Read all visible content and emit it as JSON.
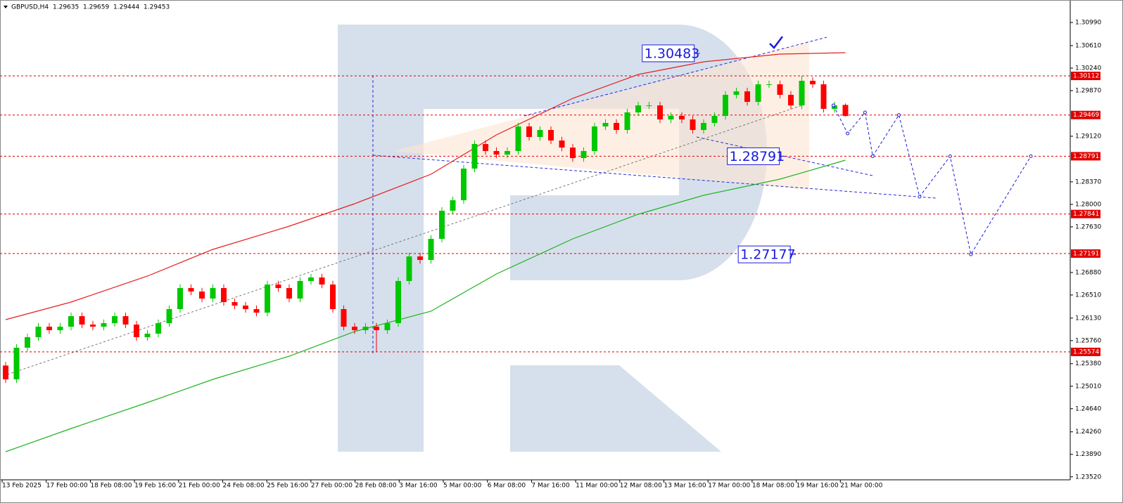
{
  "chart_data": {
    "type": "candlestick",
    "title": "GBPUSD,H4",
    "ohlc": [
      1.29635,
      1.29659,
      1.29444,
      1.29453
    ],
    "ylim": [
      1.23471,
      1.3136
    ],
    "yticks": [
      {
        "value": 1.3099,
        "label": "1.30990"
      },
      {
        "value": 1.3061,
        "label": "1.30610"
      },
      {
        "value": 1.3024,
        "label": "1.30240"
      },
      {
        "value": 1.2987,
        "label": "1.29870"
      },
      {
        "value": 1.2912,
        "label": "1.29120"
      },
      {
        "value": 1.2837,
        "label": "1.28370"
      },
      {
        "value": 1.28,
        "label": "1.28000"
      },
      {
        "value": 1.2763,
        "label": "1.27630"
      },
      {
        "value": 1.2688,
        "label": "1.26880"
      },
      {
        "value": 1.2651,
        "label": "1.26510"
      },
      {
        "value": 1.2613,
        "label": "1.26130"
      },
      {
        "value": 1.2576,
        "label": "1.25760"
      },
      {
        "value": 1.2538,
        "label": "1.25380"
      },
      {
        "value": 1.2501,
        "label": "1.25010"
      },
      {
        "value": 1.2464,
        "label": "1.24640"
      },
      {
        "value": 1.2426,
        "label": "1.24260"
      },
      {
        "value": 1.2389,
        "label": "1.23890"
      },
      {
        "value": 1.2352,
        "label": "1.23520"
      }
    ],
    "x_labels": [
      "13 Feb 2025",
      "17 Feb 00:00",
      "18 Feb 08:00",
      "19 Feb 16:00",
      "21 Feb 00:00",
      "24 Feb 08:00",
      "25 Feb 16:00",
      "27 Feb 00:00",
      "28 Feb 08:00",
      "3 Mar 16:00",
      "5 Mar 00:00",
      "6 Mar 08:00",
      "7 Mar 16:00",
      "11 Mar 00:00",
      "12 Mar 08:00",
      "13 Mar 16:00",
      "17 Mar 00:00",
      "18 Mar 08:00",
      "19 Mar 16:00",
      "21 Mar 00:00"
    ],
    "up_color": "#00c800",
    "down_color": "#ff0000",
    "candles": [
      [
        1.2535,
        1.2541,
        1.25063,
        1.25123
      ],
      [
        1.25123,
        1.25703,
        1.25063,
        1.25643
      ],
      [
        1.25643,
        1.25876,
        1.25583,
        1.25816
      ],
      [
        1.25816,
        1.26049,
        1.25756,
        1.25989
      ],
      [
        1.25989,
        1.26049,
        1.25871,
        1.25931
      ],
      [
        1.25931,
        1.26049,
        1.25871,
        1.25989
      ],
      [
        1.25989,
        1.26222,
        1.25929,
        1.26162
      ],
      [
        1.26162,
        1.26222,
        1.25964,
        1.26024
      ],
      [
        1.26024,
        1.26084,
        1.25929,
        1.25989
      ],
      [
        1.25989,
        1.26107,
        1.25929,
        1.26047
      ],
      [
        1.26047,
        1.26222,
        1.25987,
        1.26162
      ],
      [
        1.26162,
        1.26222,
        1.25964,
        1.26024
      ],
      [
        1.26024,
        1.26084,
        1.25756,
        1.25816
      ],
      [
        1.25816,
        1.25934,
        1.25756,
        1.25874
      ],
      [
        1.25874,
        1.26107,
        1.25814,
        1.26047
      ],
      [
        1.26047,
        1.26338,
        1.25987,
        1.26278
      ],
      [
        1.26278,
        1.26684,
        1.26218,
        1.26624
      ],
      [
        1.26624,
        1.26684,
        1.26507,
        1.26567
      ],
      [
        1.26567,
        1.26627,
        1.26391,
        1.26451
      ],
      [
        1.26451,
        1.26684,
        1.26391,
        1.26624
      ],
      [
        1.26624,
        1.26684,
        1.26333,
        1.26393
      ],
      [
        1.26393,
        1.26453,
        1.26276,
        1.26336
      ],
      [
        1.26336,
        1.26396,
        1.26218,
        1.26278
      ],
      [
        1.26278,
        1.26338,
        1.2616,
        1.2622
      ],
      [
        1.2622,
        1.26742,
        1.2616,
        1.26682
      ],
      [
        1.26682,
        1.26742,
        1.26564,
        1.26624
      ],
      [
        1.26624,
        1.26684,
        1.26391,
        1.26451
      ],
      [
        1.26451,
        1.268,
        1.26391,
        1.2674
      ],
      [
        1.2674,
        1.26858,
        1.2668,
        1.26798
      ],
      [
        1.26798,
        1.26858,
        1.26622,
        1.26682
      ],
      [
        1.26682,
        1.26742,
        1.26218,
        1.26278
      ],
      [
        1.26278,
        1.26338,
        1.25929,
        1.25989
      ],
      [
        1.25989,
        1.26049,
        1.25871,
        1.25931
      ],
      [
        1.25931,
        1.26049,
        1.25871,
        1.25989
      ],
      [
        1.25989,
        1.26049,
        1.25574,
        1.25931
      ],
      [
        1.25931,
        1.26107,
        1.25871,
        1.26047
      ],
      [
        1.26047,
        1.268,
        1.25987,
        1.2674
      ],
      [
        1.2674,
        1.27204,
        1.2668,
        1.27144
      ],
      [
        1.27144,
        1.27204,
        1.27026,
        1.27086
      ],
      [
        1.27086,
        1.27493,
        1.27026,
        1.27433
      ],
      [
        1.27433,
        1.27955,
        1.27373,
        1.27895
      ],
      [
        1.27895,
        1.28128,
        1.27835,
        1.28068
      ],
      [
        1.28068,
        1.28648,
        1.28008,
        1.28588
      ],
      [
        1.28588,
        1.29052,
        1.28528,
        1.28992
      ],
      [
        1.28992,
        1.29052,
        1.28817,
        1.28877
      ],
      [
        1.28877,
        1.28937,
        1.28759,
        1.28819
      ],
      [
        1.28819,
        1.28937,
        1.28759,
        1.28877
      ],
      [
        1.28877,
        1.29341,
        1.28817,
        1.29281
      ],
      [
        1.29281,
        1.29341,
        1.29048,
        1.29108
      ],
      [
        1.29108,
        1.29283,
        1.29048,
        1.29223
      ],
      [
        1.29223,
        1.29283,
        1.2899,
        1.2905
      ],
      [
        1.2905,
        1.2911,
        1.28874,
        1.28934
      ],
      [
        1.28934,
        1.28994,
        1.28701,
        1.28761
      ],
      [
        1.28761,
        1.28937,
        1.28701,
        1.28877
      ],
      [
        1.28877,
        1.29341,
        1.28817,
        1.29281
      ],
      [
        1.29281,
        1.29399,
        1.29221,
        1.29339
      ],
      [
        1.29339,
        1.29399,
        1.29163,
        1.29223
      ],
      [
        1.29223,
        1.29572,
        1.29163,
        1.29512
      ],
      [
        1.29512,
        1.29687,
        1.29452,
        1.29627
      ],
      [
        1.29627,
        1.29687,
        1.29567,
        1.29627
      ],
      [
        1.29627,
        1.29687,
        1.29336,
        1.29396
      ],
      [
        1.29396,
        1.29514,
        1.29336,
        1.29454
      ],
      [
        1.29454,
        1.29514,
        1.29336,
        1.29396
      ],
      [
        1.29396,
        1.29456,
        1.29163,
        1.29223
      ],
      [
        1.29223,
        1.29399,
        1.29163,
        1.29339
      ],
      [
        1.29339,
        1.29514,
        1.29279,
        1.29454
      ],
      [
        1.29454,
        1.29861,
        1.29394,
        1.29801
      ],
      [
        1.29801,
        1.29918,
        1.29741,
        1.29858
      ],
      [
        1.29858,
        1.29918,
        1.29625,
        1.29685
      ],
      [
        1.29685,
        1.30034,
        1.29625,
        1.29974
      ],
      [
        1.29974,
        1.30034,
        1.29914,
        1.29974
      ],
      [
        1.29974,
        1.30034,
        1.29741,
        1.29801
      ],
      [
        1.29801,
        1.29861,
        1.29567,
        1.29627
      ],
      [
        1.29627,
        1.30112,
        1.29567,
        1.30032
      ],
      [
        1.30032,
        1.30092,
        1.29914,
        1.29974
      ],
      [
        1.29974,
        1.30034,
        1.2951,
        1.2957
      ],
      [
        1.2957,
        1.29687,
        1.2951,
        1.29627
      ],
      [
        1.29635,
        1.29659,
        1.29444,
        1.29453
      ]
    ],
    "series": [
      {
        "color": "#e61e1e",
        "x": [
          0,
          6,
          13,
          19,
          26,
          32,
          39,
          45,
          52,
          58,
          64,
          71,
          77
        ],
        "values": [
          1.26105,
          1.26393,
          1.26821,
          1.2726,
          1.27641,
          1.2801,
          1.28496,
          1.29142,
          1.29743,
          1.30136,
          1.30344,
          1.30471,
          1.30494
        ]
      },
      {
        "color": "#1eb41e",
        "x": [
          0,
          6,
          13,
          19,
          26,
          32,
          39,
          45,
          52,
          58,
          64,
          71,
          77
        ],
        "values": [
          1.23933,
          1.24314,
          1.24742,
          1.25123,
          1.25504,
          1.25908,
          1.26243,
          1.26855,
          1.27433,
          1.27837,
          1.28149,
          1.28415,
          1.28727
        ]
      }
    ],
    "forecast": {
      "color": "#1a1adc",
      "x": [
        75.9,
        77.2,
        78.8,
        79.5,
        81.9,
        83.8,
        86.6,
        88.5,
        94
      ],
      "values": [
        1.29628,
        1.29165,
        1.29512,
        1.28791,
        1.29469,
        1.28126,
        1.28791,
        1.27177,
        1.28791
      ]
    },
    "levels": [
      1.30112,
      1.29469,
      1.28791,
      1.27841,
      1.27191,
      1.25574
    ],
    "annotations": [
      {
        "value": 1.30483,
        "at": 58.5
      },
      {
        "value": 1.28791,
        "at": 66.3
      },
      {
        "value": 1.27177,
        "at": 67.3
      }
    ]
  }
}
